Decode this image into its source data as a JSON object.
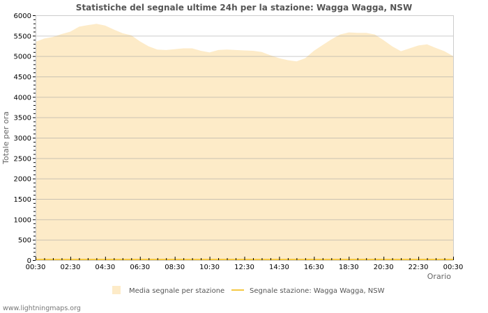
{
  "chart_data": {
    "type": "area",
    "title": "Statistiche del segnale ultime 24h per la stazione: Wagga Wagga, NSW",
    "xlabel": "Orario",
    "ylabel": "Totale per ora",
    "ylim": [
      0,
      6000
    ],
    "y_ticks": [
      0,
      500,
      1000,
      1500,
      2000,
      2500,
      3000,
      3500,
      4000,
      4500,
      5000,
      5500,
      6000
    ],
    "x_tick_labels": [
      "00:30",
      "02:30",
      "04:30",
      "06:30",
      "08:30",
      "10:30",
      "12:30",
      "14:30",
      "16:30",
      "18:30",
      "20:30",
      "22:30",
      "00:30"
    ],
    "grid": true,
    "legend_position": "bottom",
    "series": [
      {
        "name": "Media segnale per stazione",
        "kind": "area",
        "color": "#fdebc8",
        "x_hours": [
          0,
          0.5,
          1,
          1.5,
          2,
          2.5,
          3,
          3.5,
          4,
          4.5,
          5,
          5.5,
          6,
          6.5,
          7,
          7.5,
          8,
          8.5,
          9,
          9.5,
          10,
          10.5,
          11,
          11.5,
          12,
          12.5,
          13,
          13.5,
          14,
          14.5,
          15,
          15.5,
          16,
          16.5,
          17,
          17.5,
          18,
          18.5,
          19,
          19.5,
          20,
          20.5,
          21,
          21.5,
          22,
          22.5,
          23,
          23.5,
          24
        ],
        "values": [
          5350,
          5430,
          5470,
          5540,
          5600,
          5720,
          5760,
          5790,
          5750,
          5650,
          5560,
          5510,
          5360,
          5240,
          5160,
          5150,
          5170,
          5190,
          5190,
          5130,
          5090,
          5150,
          5160,
          5150,
          5140,
          5130,
          5100,
          5020,
          4950,
          4900,
          4870,
          4950,
          5130,
          5270,
          5410,
          5530,
          5580,
          5570,
          5570,
          5530,
          5390,
          5240,
          5120,
          5190,
          5260,
          5290,
          5200,
          5120,
          5000
        ]
      },
      {
        "name": "Segnale stazione: Wagga Wagga, NSW",
        "kind": "line",
        "color": "#f5c842",
        "values_note": "near zero across the full range"
      }
    ]
  },
  "legend": {
    "items": [
      {
        "label": "Media segnale per stazione",
        "swatch": "area",
        "color": "#fdebc8"
      },
      {
        "label": "Segnale stazione: Wagga Wagga, NSW",
        "swatch": "line",
        "color": "#f5c842"
      }
    ]
  },
  "footer": {
    "text": "www.lightningmaps.org"
  }
}
